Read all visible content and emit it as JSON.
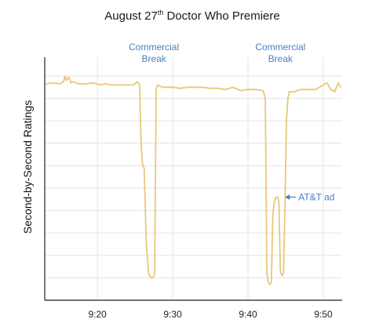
{
  "chart_data": {
    "type": "line",
    "title": {
      "prefix": "August 27",
      "superscript": "th",
      "suffix": " Doctor Who Premiere"
    },
    "xlabel": "",
    "ylabel": "Second-by-Second Ratings",
    "x_unit": "minutes since 9:00",
    "xlim": [
      13,
      52.5
    ],
    "ylim": [
      0,
      100
    ],
    "x_ticks": [
      {
        "value": 20,
        "label": "9:20"
      },
      {
        "value": 30,
        "label": "9:30"
      },
      {
        "value": 40,
        "label": "9:40"
      },
      {
        "value": 50,
        "label": "9:50"
      }
    ],
    "y_gridlines": [
      10,
      20,
      30,
      40,
      50,
      60,
      70,
      80,
      90,
      100
    ],
    "grid": true,
    "legend": "none",
    "series": [
      {
        "color": "#e8c87a",
        "x": [
          13.2,
          14,
          15,
          15.5,
          15.7,
          15.9,
          16.2,
          16.5,
          16.8,
          17.5,
          18.5,
          19.5,
          20.3,
          21,
          22,
          23,
          24,
          24.8,
          25.3,
          25.6,
          25.8,
          26.0,
          26.2,
          26.5,
          26.8,
          27.1,
          27.4,
          27.6,
          27.8,
          28.0,
          28.3,
          28.6,
          29,
          30,
          31,
          32,
          33,
          34,
          35,
          36,
          37,
          38,
          39,
          40,
          41,
          42,
          42.3,
          42.5,
          42.7,
          42.9,
          43.1,
          43.3,
          43.5,
          43.7,
          43.9,
          44.1,
          44.3,
          44.5,
          44.7,
          44.9,
          45.1,
          45.3,
          45.5,
          45.8,
          46.2,
          47,
          48,
          49,
          50,
          50.5,
          51,
          51.5,
          52.0,
          52.3
        ],
        "y": [
          96.5,
          97,
          96.5,
          97.5,
          100,
          98,
          99.5,
          97,
          97.5,
          96.5,
          96.5,
          97,
          96,
          96.5,
          96,
          96,
          96,
          96,
          97.5,
          96,
          70,
          60,
          59,
          25,
          12,
          10,
          10,
          12,
          94,
          96,
          95.5,
          95,
          95,
          95,
          94.5,
          95,
          95,
          95,
          94.5,
          94.5,
          94,
          95,
          93.5,
          94,
          94,
          93.5,
          90,
          12,
          8,
          7,
          8,
          38,
          44,
          46,
          46,
          44,
          13,
          11,
          12,
          40,
          80,
          90,
          93,
          93,
          93,
          94,
          94,
          94,
          96,
          97,
          94,
          93,
          97,
          95
        ]
      }
    ],
    "annotations": [
      {
        "kind": "text",
        "lines": [
          "Commercial",
          "Break"
        ],
        "x": 27.5,
        "y": 107,
        "color": "#4a7fc1"
      },
      {
        "kind": "text",
        "lines": [
          "Commercial",
          "Break"
        ],
        "x": 44.3,
        "y": 107,
        "color": "#4a7fc1"
      },
      {
        "kind": "arrow",
        "text": "AT&T ad",
        "x": 44.5,
        "y": 46,
        "color": "#4a7fc1"
      }
    ]
  }
}
